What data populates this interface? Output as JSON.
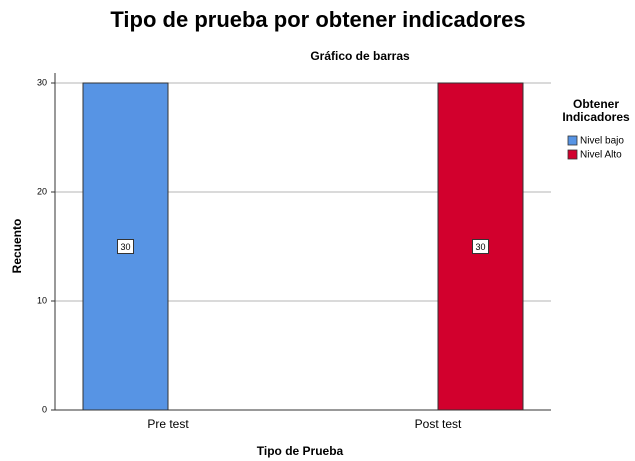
{
  "chart_data": {
    "type": "bar",
    "title": "Tipo de prueba por obtener indicadores",
    "subtitle": "Gráfico de barras",
    "x_label": "Tipo de Prueba",
    "y_label": "Recuento",
    "legend_title": "Obtener Indicadores",
    "categories": [
      "Pre test",
      "Post test"
    ],
    "series": [
      {
        "name": "Nivel bajo",
        "color": "#5794e4",
        "values": [
          30,
          null
        ]
      },
      {
        "name": "Nivel Alto",
        "color": "#d2002d",
        "values": [
          null,
          30
        ]
      }
    ],
    "ylim": [
      0,
      30
    ],
    "yticks": [
      0,
      10,
      20,
      30
    ],
    "grid": true,
    "legend": "right"
  }
}
